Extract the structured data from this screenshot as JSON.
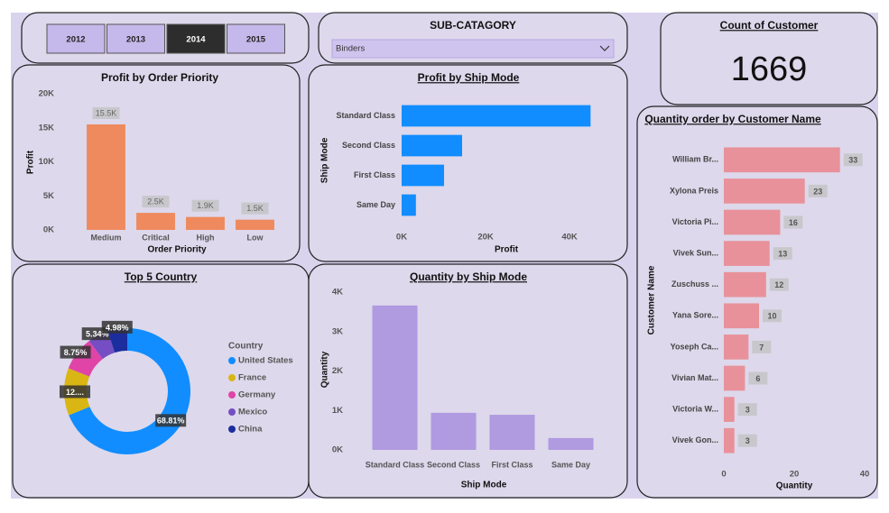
{
  "year_slicer": {
    "options": [
      "2012",
      "2013",
      "2014",
      "2015"
    ],
    "selected": "2014"
  },
  "subcategory_slicer": {
    "title": "SUB-CATAGORY",
    "value": "Binders"
  },
  "card": {
    "title": "Count of Customer",
    "value": 1669
  },
  "chart_data": [
    {
      "type": "bar",
      "title": "Profit by Order Priority",
      "x_label": "Order Priority",
      "y_label": "Profit",
      "categories": [
        "Medium",
        "Critical",
        "High",
        "Low"
      ],
      "values": [
        15500,
        2500,
        1900,
        1500
      ],
      "value_labels": [
        "15.5K",
        "2.5K",
        "1.9K",
        "1.5K"
      ],
      "color": "#ee8a5e",
      "ylim": [
        0,
        20000
      ],
      "yticks": [
        {
          "value": 0,
          "label": "0K"
        },
        {
          "value": 5000,
          "label": "5K"
        },
        {
          "value": 10000,
          "label": "10K"
        },
        {
          "value": 15000,
          "label": "15K"
        },
        {
          "value": 20000,
          "label": "20K"
        }
      ]
    },
    {
      "type": "hbar",
      "title": "Profit by Ship Mode",
      "x_label": "Profit",
      "y_label": "Ship Mode",
      "categories": [
        "Standard Class",
        "Second Class",
        "First Class",
        "Same Day"
      ],
      "values": [
        45000,
        14400,
        10100,
        3400
      ],
      "color": "#118dff",
      "xlim": [
        0,
        46000
      ],
      "xticks": [
        {
          "value": 0,
          "label": "0K"
        },
        {
          "value": 20000,
          "label": "20K"
        },
        {
          "value": 40000,
          "label": "40K"
        }
      ]
    },
    {
      "type": "donut",
      "title": "Top 5 Country",
      "legend_title": "Country",
      "categories": [
        "United States",
        "France",
        "Germany",
        "Mexico",
        "China"
      ],
      "values": [
        68.81,
        12.12,
        8.75,
        5.34,
        4.98
      ],
      "value_labels": [
        "68.81%",
        "12....",
        "8.75%",
        "5.34%",
        "4.98%"
      ],
      "colors": [
        "#118dff",
        "#d9b613",
        "#e044a7",
        "#744ec2",
        "#1c2e9e"
      ]
    },
    {
      "type": "bar",
      "title": "Quantity by Ship Mode",
      "x_label": "Ship Mode",
      "y_label": "Quantity",
      "categories": [
        "Standard Class",
        "Second Class",
        "First Class",
        "Same Day"
      ],
      "values": [
        3660,
        940,
        890,
        300
      ],
      "color": "#b09ae0",
      "ylim": [
        0,
        4000
      ],
      "yticks": [
        {
          "value": 0,
          "label": "0K"
        },
        {
          "value": 1000,
          "label": "1K"
        },
        {
          "value": 2000,
          "label": "2K"
        },
        {
          "value": 3000,
          "label": "3K"
        },
        {
          "value": 4000,
          "label": "4K"
        }
      ]
    },
    {
      "type": "hbar",
      "title": "Quantity order by Customer Name",
      "x_label": "Quantity",
      "y_label": "Customer Name",
      "categories": [
        "William Br...",
        "Xylona Preis",
        "Victoria Pi...",
        "Vivek Sun...",
        "Zuschuss ...",
        "Yana Sore...",
        "Yoseph Ca...",
        "Vivian Mat...",
        "Victoria W...",
        "Vivek Gon..."
      ],
      "values": [
        33,
        23,
        16,
        13,
        12,
        10,
        7,
        6,
        3,
        3
      ],
      "data_labels": true,
      "color": "#e8919a",
      "xlim": [
        0,
        40
      ],
      "xticks": [
        0,
        20,
        40
      ]
    }
  ]
}
